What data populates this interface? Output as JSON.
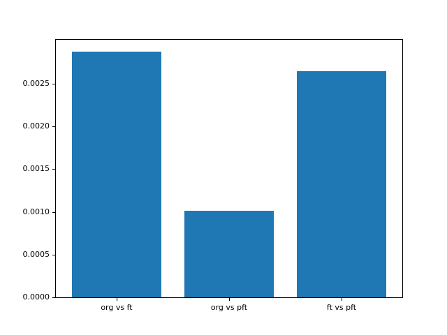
{
  "chart_data": {
    "type": "bar",
    "categories": [
      "org vs ft",
      "org vs pft",
      "ft vs pft"
    ],
    "values": [
      0.00288,
      0.00101,
      0.00265
    ],
    "title": "",
    "xlabel": "",
    "ylabel": "",
    "ylim": [
      0,
      0.003015
    ],
    "xlim": [
      -0.54,
      2.54
    ],
    "bar_width": 0.8,
    "yticks": [
      0.0,
      0.0005,
      0.001,
      0.0015,
      0.002,
      0.0025
    ],
    "ytick_labels": [
      "0.0000",
      "0.0005",
      "0.0010",
      "0.0015",
      "0.0020",
      "0.0025"
    ],
    "bar_color": "#1f77b4",
    "axis_color": "#000000",
    "grid": false,
    "legend": null
  }
}
